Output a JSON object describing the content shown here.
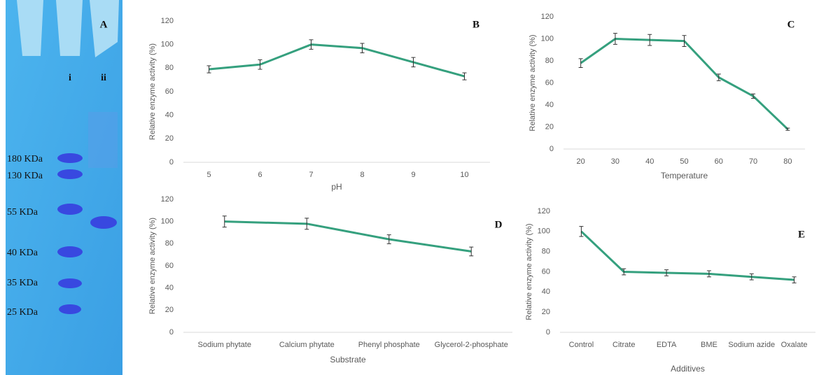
{
  "gel": {
    "panel_label": "A",
    "lanes": [
      "i",
      "ii"
    ],
    "markers": [
      "180 KDa",
      "130 KDa",
      "55 KDa",
      "40 KDa",
      "35 KDa",
      "25 KDa"
    ]
  },
  "chart_data": [
    {
      "type": "line",
      "panel_label": "B",
      "x_label": "pH",
      "y_label": "Relative enzyme activity (%)",
      "categories": [
        "5",
        "6",
        "7",
        "8",
        "9",
        "10"
      ],
      "series": [
        {
          "color": "#35a07e",
          "values": [
            79,
            83,
            100,
            97,
            85,
            73
          ],
          "errors": [
            3,
            4,
            4,
            4,
            4,
            3
          ]
        }
      ],
      "ylim": [
        0,
        120
      ],
      "yticks": [
        0,
        20,
        40,
        60,
        80,
        100,
        120
      ],
      "grid": false
    },
    {
      "type": "line",
      "panel_label": "C",
      "x_label": "Temperature",
      "y_label": "Relative enzyme activity (%)",
      "categories": [
        "20",
        "30",
        "40",
        "50",
        "60",
        "70",
        "80"
      ],
      "series": [
        {
          "color": "#35a07e",
          "values": [
            78,
            100,
            99,
            98,
            65,
            48,
            18
          ],
          "errors": [
            4,
            5,
            5,
            5,
            3,
            2,
            1
          ]
        }
      ],
      "ylim": [
        0,
        120
      ],
      "yticks": [
        0,
        20,
        40,
        60,
        80,
        100,
        120
      ],
      "grid": false
    },
    {
      "type": "line",
      "panel_label": "D",
      "x_label": "Substrate",
      "y_label": "Relative enzyme activity (%)",
      "categories": [
        "Sodium phytate",
        "Calcium phytate",
        "Phenyl phosphate",
        "Glycerol-2-phosphate"
      ],
      "series": [
        {
          "color": "#35a07e",
          "values": [
            100,
            98,
            84,
            73
          ],
          "errors": [
            5,
            5,
            4,
            4
          ]
        }
      ],
      "ylim": [
        0,
        120
      ],
      "yticks": [
        0,
        20,
        40,
        60,
        80,
        100,
        120
      ],
      "grid": false
    },
    {
      "type": "line",
      "panel_label": "E",
      "x_label": "Additives",
      "y_label": "Relative enzyme activity (%)",
      "categories": [
        "Control",
        "Citrate",
        "EDTA",
        "BME",
        "Sodium azide",
        "Oxalate"
      ],
      "series": [
        {
          "color": "#35a07e",
          "values": [
            100,
            60,
            59,
            58,
            55,
            52
          ],
          "errors": [
            5,
            3,
            3,
            3,
            3,
            3
          ]
        }
      ],
      "ylim": [
        0,
        120
      ],
      "yticks": [
        0,
        20,
        40,
        60,
        80,
        100,
        120
      ],
      "grid": false
    }
  ]
}
